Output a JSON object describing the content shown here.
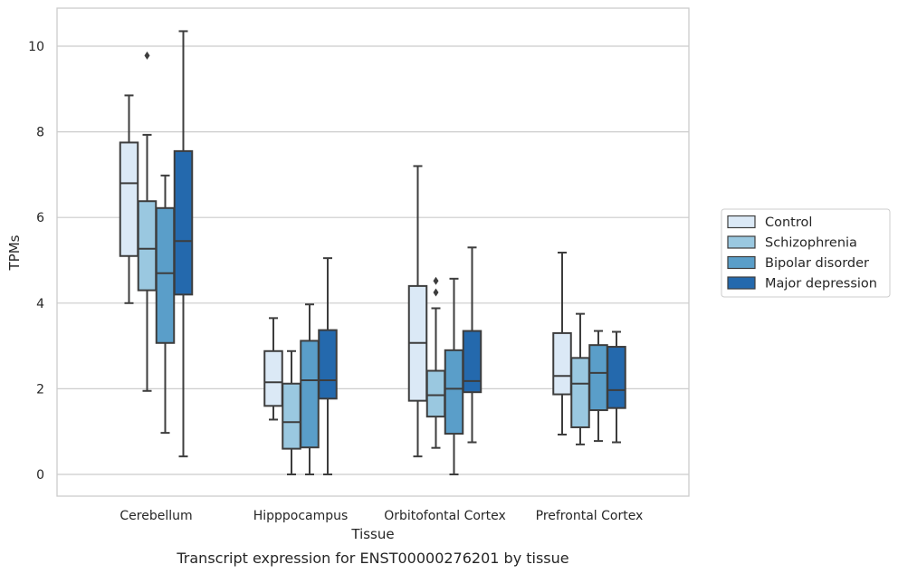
{
  "chart_data": {
    "type": "box",
    "caption": "Transcript expression for ENST00000276201 by tissue",
    "xlabel": "Tissue",
    "ylabel": "TPMs",
    "ylim": [
      -0.5,
      10.85
    ],
    "yticks": [
      0,
      2,
      4,
      6,
      8,
      10
    ],
    "grid": true,
    "legend_position": "right",
    "categories": [
      "Cerebellum",
      "Hipppocampus",
      "Orbitofontal Cortex",
      "Prefrontal Cortex"
    ],
    "series": [
      {
        "name": "Control",
        "color": "#dbe9f6",
        "boxes": [
          {
            "min": 4.0,
            "q1": 5.1,
            "median": 6.8,
            "q3": 7.75,
            "max": 8.85,
            "outliers": []
          },
          {
            "min": 1.28,
            "q1": 1.6,
            "median": 2.15,
            "q3": 2.88,
            "max": 3.65,
            "outliers": []
          },
          {
            "min": 0.42,
            "q1": 1.72,
            "median": 3.07,
            "q3": 4.4,
            "max": 7.2,
            "outliers": []
          },
          {
            "min": 0.93,
            "q1": 1.87,
            "median": 2.3,
            "q3": 3.3,
            "max": 5.18,
            "outliers": []
          }
        ]
      },
      {
        "name": "Schizophrenia",
        "color": "#9ac8e0",
        "boxes": [
          {
            "min": 1.95,
            "q1": 4.3,
            "median": 5.27,
            "q3": 6.38,
            "max": 7.93,
            "outliers": [
              9.78
            ]
          },
          {
            "min": 0.0,
            "q1": 0.6,
            "median": 1.22,
            "q3": 2.12,
            "max": 2.88,
            "outliers": []
          },
          {
            "min": 0.62,
            "q1": 1.35,
            "median": 1.85,
            "q3": 2.42,
            "max": 3.88,
            "outliers": [
              4.25,
              4.52
            ]
          },
          {
            "min": 0.7,
            "q1": 1.1,
            "median": 2.12,
            "q3": 2.72,
            "max": 3.75,
            "outliers": []
          }
        ]
      },
      {
        "name": "Bipolar disorder",
        "color": "#5a9ec9",
        "boxes": [
          {
            "min": 0.97,
            "q1": 3.07,
            "median": 4.7,
            "q3": 6.22,
            "max": 6.98,
            "outliers": []
          },
          {
            "min": 0.0,
            "q1": 0.63,
            "median": 2.2,
            "q3": 3.12,
            "max": 3.97,
            "outliers": []
          },
          {
            "min": 0.0,
            "q1": 0.95,
            "median": 2.0,
            "q3": 2.9,
            "max": 4.57,
            "outliers": []
          },
          {
            "min": 0.78,
            "q1": 1.5,
            "median": 2.37,
            "q3": 3.02,
            "max": 3.35,
            "outliers": []
          }
        ]
      },
      {
        "name": "Major depression",
        "color": "#2469ad",
        "boxes": [
          {
            "min": 0.42,
            "q1": 4.2,
            "median": 5.45,
            "q3": 7.55,
            "max": 10.35,
            "outliers": []
          },
          {
            "min": 0.0,
            "q1": 1.77,
            "median": 2.2,
            "q3": 3.37,
            "max": 5.05,
            "outliers": []
          },
          {
            "min": 0.75,
            "q1": 1.92,
            "median": 2.18,
            "q3": 3.35,
            "max": 5.3,
            "outliers": []
          },
          {
            "min": 0.75,
            "q1": 1.55,
            "median": 1.97,
            "q3": 2.98,
            "max": 3.33,
            "outliers": []
          }
        ]
      }
    ]
  }
}
